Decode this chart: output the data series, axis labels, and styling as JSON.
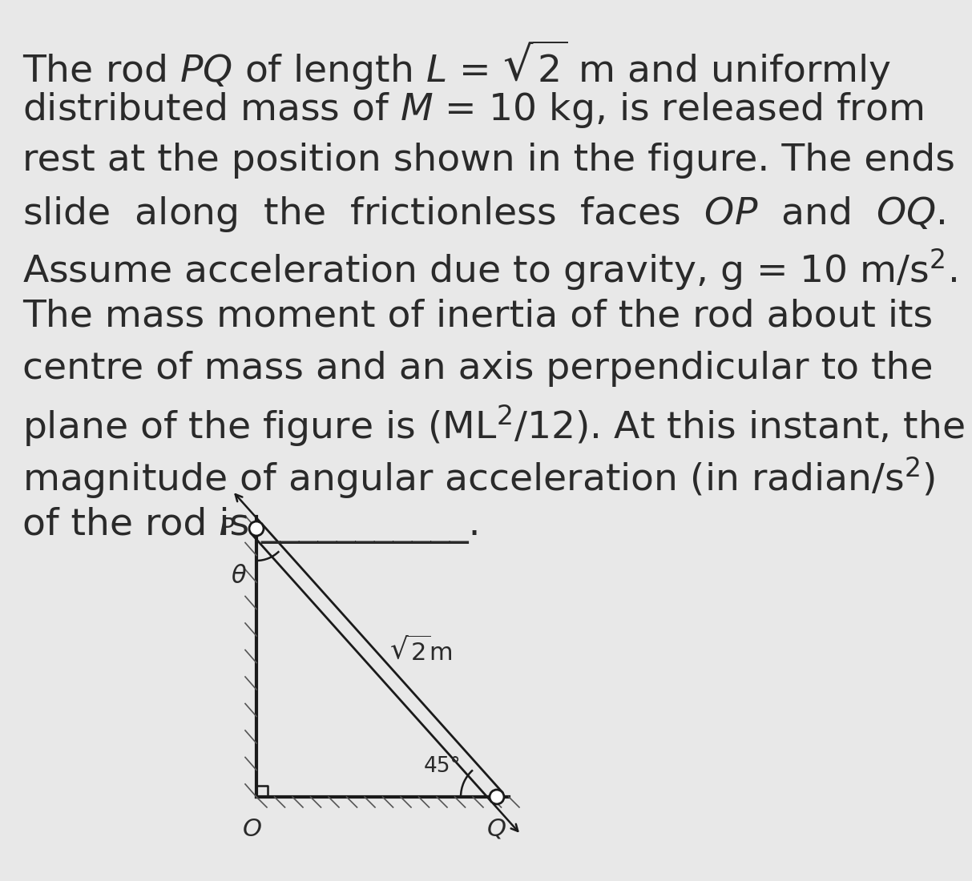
{
  "bg_color": "#e8e8e8",
  "line1": "The rod $\\mathit{PQ}$ of length $\\mathit{L}$ = $\\sqrt{2}$ m and uniformly",
  "line2": "distributed mass of $\\mathit{M}$ = 10 kg, is released from",
  "line3": "rest at the position shown in the figure. The ends",
  "line4": "slide  along  the  frictionless  faces  $\\mathit{OP}$  and  $\\mathit{OQ}$.",
  "line5": "Assume acceleration due to gravity, g = 10 m/s$^{2}$.",
  "line6": "The mass moment of inertia of the rod about its",
  "line7": "centre of mass and an axis perpendicular to the",
  "line8": "plane of the figure is (ML$^{2}$/12). At this instant, the",
  "line9": "magnitude of angular acceleration (in radian/s$^{2}$)",
  "line10_a": "of the rod is ",
  "line10_b": "___________",
  "line10_c": ".",
  "font_size_text": 34,
  "font_size_diagram": 22,
  "text_color": "#2a2a2a",
  "diagram_color": "#1a1a1a"
}
